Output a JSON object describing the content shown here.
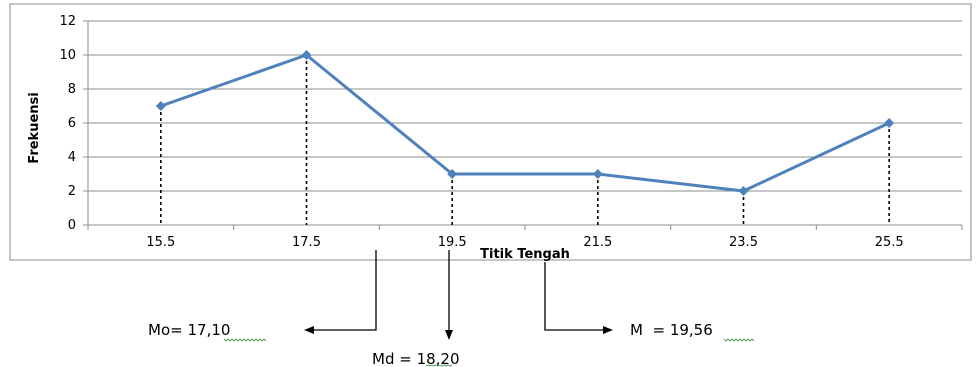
{
  "chart_data": {
    "type": "line",
    "title": "",
    "xlabel": "Titik Tengah",
    "ylabel": "Frekuensi",
    "categories": [
      "15.5",
      "17.5",
      "19.5",
      "21.5",
      "23.5",
      "25.5"
    ],
    "series": [
      {
        "values": [
          7,
          10,
          3,
          3,
          2,
          6
        ]
      }
    ],
    "ylim": [
      0,
      12
    ],
    "yticks": [
      "0",
      "2",
      "4",
      "6",
      "8",
      "10",
      "12"
    ],
    "grid": true,
    "legend": "none",
    "colors": {
      "line": "#4f81bd",
      "grid": "#8c8c8c",
      "drop_line": "#000000"
    }
  },
  "annotations": {
    "mode": {
      "label": "Mo= ",
      "value": "17,10"
    },
    "median": {
      "label": "Md = ",
      "value": "18,20"
    },
    "mean": {
      "label": "M  = ",
      "value": "19,56"
    }
  }
}
